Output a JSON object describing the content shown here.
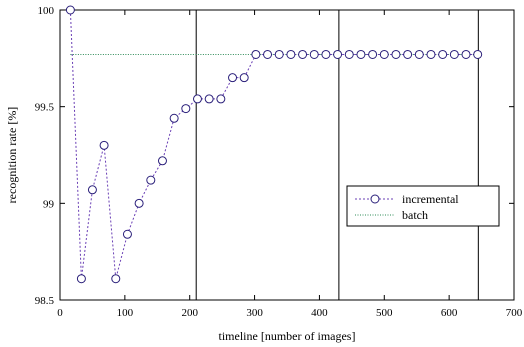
{
  "chart_data": {
    "type": "line",
    "title": "",
    "xlabel": "timeline [number of images]",
    "ylabel": "recognition rate [%]",
    "xlim": [
      0,
      700
    ],
    "ylim": [
      98.5,
      100
    ],
    "xticks": [
      "0",
      "100",
      "200",
      "300",
      "400",
      "500",
      "600",
      "700"
    ],
    "xtick_values": [
      0,
      100,
      200,
      300,
      400,
      500,
      600,
      700
    ],
    "yticks": [
      "98.5",
      "99",
      "99.5",
      "100"
    ],
    "ytick_values": [
      98.5,
      99,
      99.5,
      100
    ],
    "grid": false,
    "legend_position": "right",
    "vertical_lines_x": [
      210,
      430,
      645
    ],
    "series": [
      {
        "name": "incremental",
        "style": "dotted-with-circle-markers",
        "color": "#6a3fb5",
        "marker_color": "#2a1f7a",
        "x": [
          16,
          33,
          50,
          68,
          86,
          104,
          122,
          140,
          158,
          176,
          194,
          212,
          230,
          248,
          266,
          284,
          302,
          320,
          338,
          356,
          374,
          392,
          410,
          428,
          446,
          464,
          482,
          500,
          518,
          536,
          554,
          572,
          590,
          608,
          626,
          644
        ],
        "y": [
          100.0,
          98.61,
          99.07,
          99.3,
          98.61,
          98.84,
          99.0,
          99.12,
          99.22,
          99.44,
          99.49,
          99.54,
          99.54,
          99.54,
          99.65,
          99.65,
          99.77,
          99.77,
          99.77,
          99.77,
          99.77,
          99.77,
          99.77,
          99.77,
          99.77,
          99.77,
          99.77,
          99.77,
          99.77,
          99.77,
          99.77,
          99.77,
          99.77,
          99.77,
          99.77,
          99.77
        ]
      },
      {
        "name": "batch",
        "style": "dotted",
        "color": "#2e8b57",
        "x": [
          16,
          644
        ],
        "y": [
          99.77,
          99.77
        ]
      }
    ]
  }
}
